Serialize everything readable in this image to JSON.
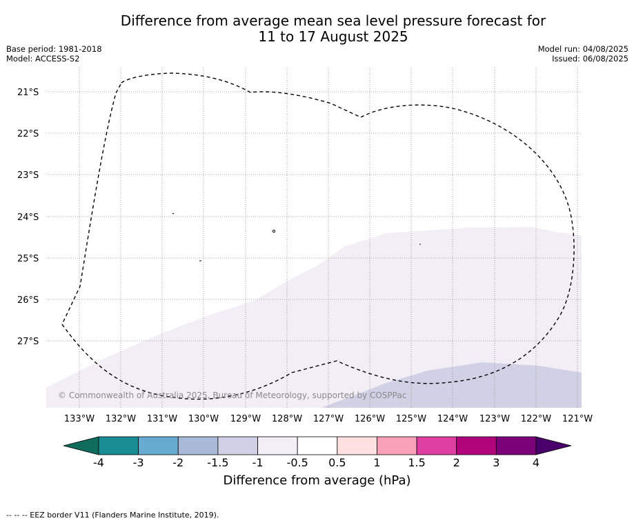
{
  "title_line1": "Difference from average mean sea level pressure forecast for",
  "title_line2": "11 to 17 August 2025",
  "base_period": "Base period: 1981-2018",
  "model": "Model: ACCESS-S2",
  "model_run": "Model run: 04/08/2025",
  "issued": "Issued: 06/08/2025",
  "copyright": "© Commonwealth of Australia 2025, Bureau of Meteorology, supported by COSPPac",
  "lat_labels": [
    "21°S",
    "22°S",
    "23°S",
    "24°S",
    "25°S",
    "26°S",
    "27°S"
  ],
  "lon_labels": [
    "133°W",
    "132°W",
    "131°W",
    "130°W",
    "129°W",
    "128°W",
    "127°W",
    "126°W",
    "125°W",
    "124°W",
    "123°W",
    "122°W",
    "121°W"
  ],
  "colorbar": {
    "ticks": [
      "-4",
      "-3",
      "-2",
      "-1.5",
      "-1",
      "-0.5",
      "0.5",
      "1",
      "1.5",
      "2",
      "3",
      "4"
    ],
    "colors": [
      "#1a8c93",
      "#68abd0",
      "#a8bad8",
      "#d1d1e6",
      "#f3eef6",
      "#ffffff",
      "#ffe0e0",
      "#f8a1b9",
      "#df3fa0",
      "#b1037a",
      "#7a0177"
    ],
    "extend_low_color": "#0f6b5c",
    "extend_high_color": "#4a006a",
    "label": "Difference from average (hPa)"
  },
  "footer": "-- -- -- EEZ border V11 (Flanders Marine Institute, 2019).",
  "fill_colors": {
    "light_lilac": "#f3eef6",
    "pale_blue": "#d1d1e6"
  }
}
